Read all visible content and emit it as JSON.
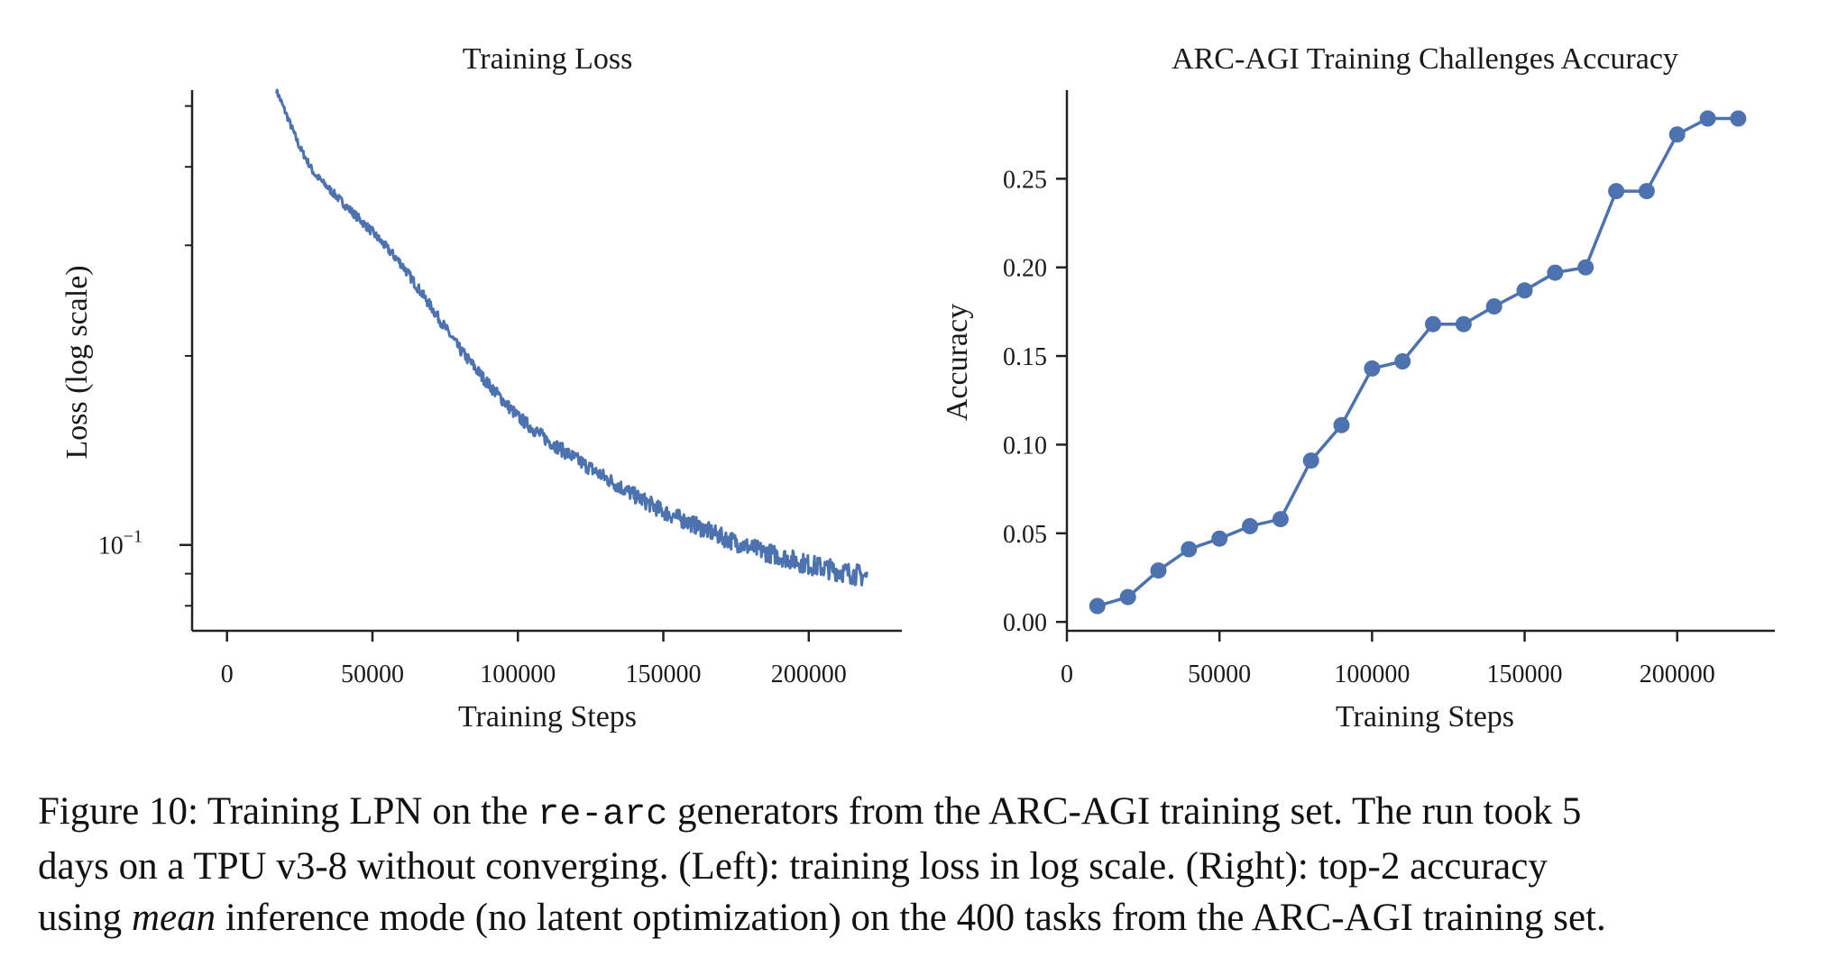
{
  "chart_data": [
    {
      "type": "line",
      "title": "Training Loss",
      "xlabel": "Training Steps",
      "ylabel": "Loss (log scale)",
      "yscale": "log",
      "xlim": [
        -12000,
        232000
      ],
      "ylim": [
        0.073,
        0.53
      ],
      "xticks": [
        0,
        50000,
        100000,
        150000,
        200000
      ],
      "yticks_major": [
        {
          "value": 0.1,
          "base": "10",
          "exp": "−1"
        }
      ],
      "yticks_minor": [
        0.08,
        0.09,
        0.2,
        0.3,
        0.4,
        0.5
      ],
      "color": "#4c72b0",
      "series": [
        {
          "name": "loss",
          "x": [
            17000,
            20000,
            25000,
            30000,
            40000,
            50000,
            60000,
            70000,
            80000,
            90000,
            100000,
            110000,
            120000,
            130000,
            140000,
            150000,
            160000,
            170000,
            180000,
            190000,
            200000,
            210000,
            220000
          ],
          "values": [
            0.53,
            0.49,
            0.43,
            0.39,
            0.35,
            0.315,
            0.28,
            0.24,
            0.205,
            0.18,
            0.16,
            0.147,
            0.137,
            0.128,
            0.12,
            0.113,
            0.108,
            0.103,
            0.099,
            0.096,
            0.093,
            0.091,
            0.089
          ]
        }
      ]
    },
    {
      "type": "line",
      "title": "ARC-AGI Training Challenges Accuracy",
      "xlabel": "Training Steps",
      "ylabel": "Accuracy",
      "xlim": [
        0,
        232000
      ],
      "ylim": [
        -0.005,
        0.3
      ],
      "xticks": [
        0,
        50000,
        100000,
        150000,
        200000
      ],
      "yticks": [
        "0.00",
        "0.05",
        "0.10",
        "0.15",
        "0.20",
        "0.25"
      ],
      "color": "#4c72b0",
      "series": [
        {
          "name": "accuracy",
          "x": [
            10000,
            20000,
            30000,
            40000,
            50000,
            60000,
            70000,
            80000,
            90000,
            100000,
            110000,
            120000,
            130000,
            140000,
            150000,
            160000,
            170000,
            180000,
            190000,
            200000,
            210000,
            220000
          ],
          "values": [
            0.009,
            0.014,
            0.029,
            0.041,
            0.047,
            0.054,
            0.058,
            0.091,
            0.111,
            0.143,
            0.147,
            0.168,
            0.168,
            0.178,
            0.187,
            0.197,
            0.2,
            0.243,
            0.243,
            0.275,
            0.284,
            0.284
          ]
        }
      ]
    }
  ],
  "caption": {
    "line1": {
      "before": "Figure 10: Training LPN on the ",
      "code": "re-arc",
      "after": " generators from the ARC-AGI training set. The run took 5"
    },
    "line2": "days on a TPU v3-8 without converging. (Left): training loss in log scale. (Right): top-2 accuracy",
    "line3": {
      "before": "using ",
      "emph": "mean",
      "after": " inference mode (no latent optimization) on the 400 tasks from the ARC-AGI training set."
    }
  }
}
